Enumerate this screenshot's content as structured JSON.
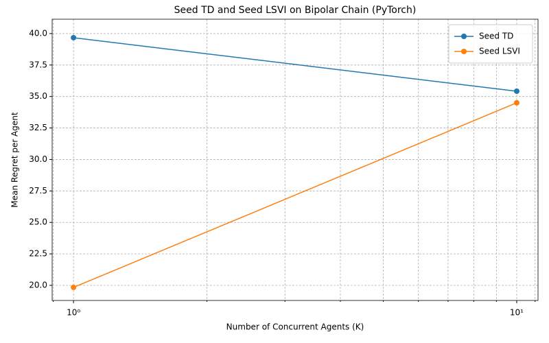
{
  "chart_data": {
    "type": "line",
    "title": "Seed TD and Seed LSVI on Bipolar Chain (PyTorch)",
    "xlabel": "Number of Concurrent Agents (K)",
    "ylabel": "Mean Regret per Agent",
    "x": [
      1,
      10
    ],
    "xscale": "log",
    "series": [
      {
        "name": "Seed TD",
        "color": "#1f77b4",
        "values": [
          39.67,
          35.42
        ]
      },
      {
        "name": "Seed LSVI",
        "color": "#ff7f0e",
        "values": [
          19.84,
          34.5
        ]
      }
    ],
    "xlim": [
      0.895,
      11.17
    ],
    "ylim": [
      18.8,
      41.14
    ],
    "xticks": [
      {
        "value": 1,
        "label": "10⁰"
      },
      {
        "value": 10,
        "label": "10¹"
      }
    ],
    "xminorticks": [
      0.9,
      2,
      3,
      4,
      5,
      6,
      7,
      8,
      9,
      11
    ],
    "yticks": [
      {
        "value": 20,
        "label": "20.0"
      },
      {
        "value": 22.5,
        "label": "22.5"
      },
      {
        "value": 25,
        "label": "25.0"
      },
      {
        "value": 27.5,
        "label": "27.5"
      },
      {
        "value": 30,
        "label": "30.0"
      },
      {
        "value": 32.5,
        "label": "32.5"
      },
      {
        "value": 35,
        "label": "35.0"
      },
      {
        "value": 37.5,
        "label": "37.5"
      },
      {
        "value": 40,
        "label": "40.0"
      }
    ],
    "grid": true,
    "legend": "upper right"
  }
}
